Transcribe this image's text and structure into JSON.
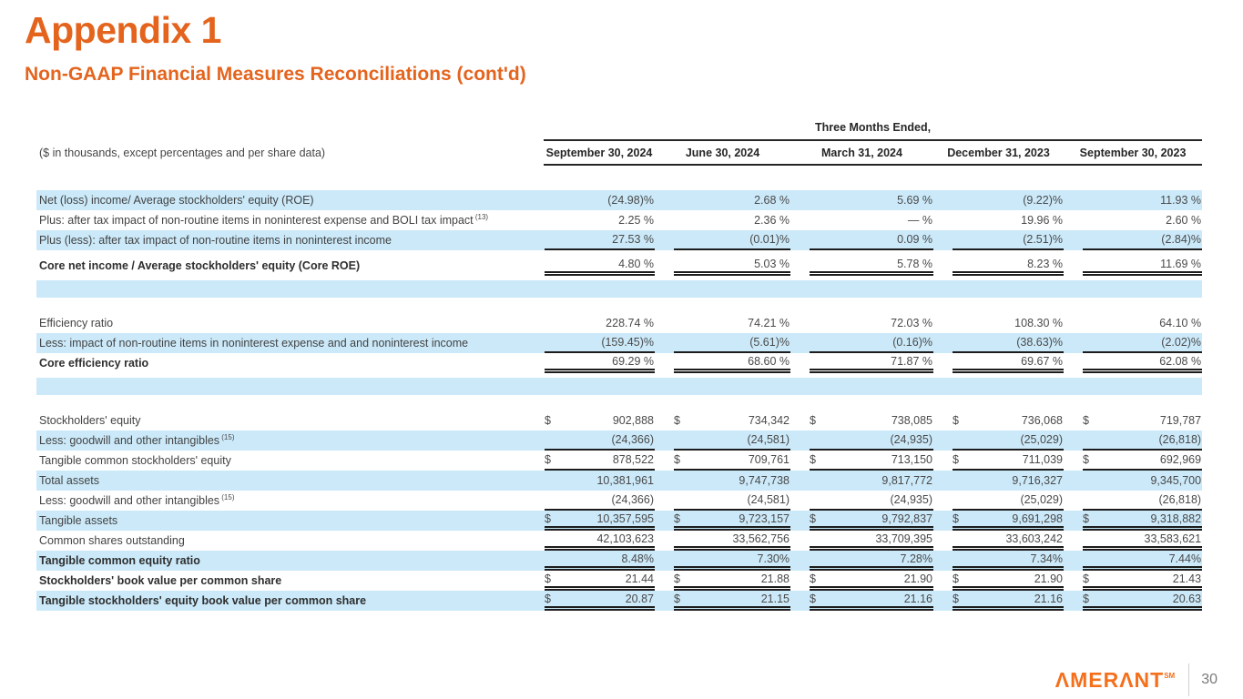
{
  "page": {
    "title": "Appendix 1",
    "subtitle": "Non-GAAP Financial Measures Reconciliations (cont'd)"
  },
  "colors": {
    "accent_orange": "#E4641E",
    "logo_orange": "#F4701D",
    "row_highlight_blue": "#CBE9F9",
    "rule_black": "#1c1c1c",
    "body_text": "#474747"
  },
  "footer": {
    "logo_text": "AMERANT",
    "logo_mark": "SM",
    "page_number": "30"
  },
  "table": {
    "note": "($ in thousands, except percentages and per share data)",
    "group_header": "Three Months Ended,",
    "dollar_sign": "$",
    "columns": [
      "September 30, 2024",
      "June 30, 2024",
      "March 31, 2024",
      "December 31, 2023",
      "September 30, 2023"
    ],
    "rows": [
      {
        "label": "Net (loss) income/ Average stockholders' equity (ROE)",
        "shade": "blue",
        "values": [
          "(24.98)%",
          "2.68 %",
          "5.69 %",
          "(9.22)%",
          "11.93 %"
        ]
      },
      {
        "label": "Plus: after tax impact of non-routine items in noninterest expense and BOLI tax impact",
        "sup": "(13)",
        "shade": "white",
        "values": [
          "2.25 %",
          "2.36 %",
          "— %",
          "19.96 %",
          "2.60 %"
        ]
      },
      {
        "label": "Plus (less): after tax impact of non-routine items in noninterest income",
        "shade": "blue",
        "underline": "single",
        "values": [
          "27.53 %",
          "(0.01)%",
          "0.09 %",
          "(2.51)%",
          "(2.84)%"
        ]
      },
      {
        "label": "Core net income / Average stockholders' equity (Core ROE)",
        "shade": "white",
        "bold": true,
        "underline": "double",
        "pregap": true,
        "values": [
          "4.80 %",
          "5.03 %",
          "5.78 %",
          "8.23 %",
          "11.69 %"
        ]
      },
      {
        "blank": true,
        "shade": "blue"
      },
      {
        "gap": true
      },
      {
        "label": "Efficiency ratio",
        "shade": "white",
        "values": [
          "228.74 %",
          "74.21 %",
          "72.03 %",
          "108.30 %",
          "64.10 %"
        ]
      },
      {
        "label": "Less: impact of non-routine items in noninterest expense and and noninterest income",
        "shade": "blue",
        "underline": "single",
        "values": [
          "(159.45)%",
          "(5.61)%",
          "(0.16)%",
          "(38.63)%",
          "(2.02)%"
        ]
      },
      {
        "label": "Core efficiency ratio",
        "shade": "white",
        "bold": true,
        "underline": "double",
        "values": [
          "69.29 %",
          "68.60 %",
          "71.87 %",
          "69.67 %",
          "62.08 %"
        ]
      },
      {
        "blank": true,
        "shade": "blue"
      },
      {
        "gap": true
      },
      {
        "label": "Stockholders' equity",
        "shade": "white",
        "dollar": true,
        "values": [
          "902,888",
          "734,342",
          "738,085",
          "736,068",
          "719,787"
        ]
      },
      {
        "label": "Less: goodwill and other intangibles",
        "sup": "(15)",
        "shade": "blue",
        "underline": "single",
        "values": [
          "(24,366)",
          "(24,581)",
          "(24,935)",
          "(25,029)",
          "(26,818)"
        ]
      },
      {
        "label": "Tangible common stockholders' equity",
        "shade": "white",
        "dollar": true,
        "underline": "single",
        "values": [
          "878,522",
          "709,761",
          "713,150",
          "711,039",
          "692,969"
        ]
      },
      {
        "label": "Total assets",
        "shade": "blue",
        "values": [
          "10,381,961",
          "9,747,738",
          "9,817,772",
          "9,716,327",
          "9,345,700"
        ]
      },
      {
        "label": "Less: goodwill and other intangibles",
        "sup": "(15)",
        "shade": "white",
        "underline": "single",
        "values": [
          "(24,366)",
          "(24,581)",
          "(24,935)",
          "(25,029)",
          "(26,818)"
        ]
      },
      {
        "label": "Tangible assets",
        "shade": "blue",
        "dollar": true,
        "underline": "double",
        "values": [
          "10,357,595",
          "9,723,157",
          "9,792,837",
          "9,691,298",
          "9,318,882"
        ]
      },
      {
        "label": "Common shares outstanding",
        "shade": "white",
        "underline": "double",
        "values": [
          "42,103,623",
          "33,562,756",
          "33,709,395",
          "33,603,242",
          "33,583,621"
        ]
      },
      {
        "label": "Tangible common equity ratio",
        "shade": "blue",
        "bold": true,
        "underline": "double",
        "values": [
          "8.48%",
          "7.30%",
          "7.28%",
          "7.34%",
          "7.44%"
        ]
      },
      {
        "label": "Stockholders' book value per common share",
        "shade": "white",
        "bold": true,
        "dollar": true,
        "underline": "double",
        "values": [
          "21.44",
          "21.88",
          "21.90",
          "21.90",
          "21.43"
        ]
      },
      {
        "label": "Tangible stockholders' equity book value per common share",
        "shade": "blue",
        "bold": true,
        "dollar": true,
        "underline": "double",
        "values": [
          "20.87",
          "21.15",
          "21.16",
          "21.16",
          "20.63"
        ]
      }
    ]
  }
}
